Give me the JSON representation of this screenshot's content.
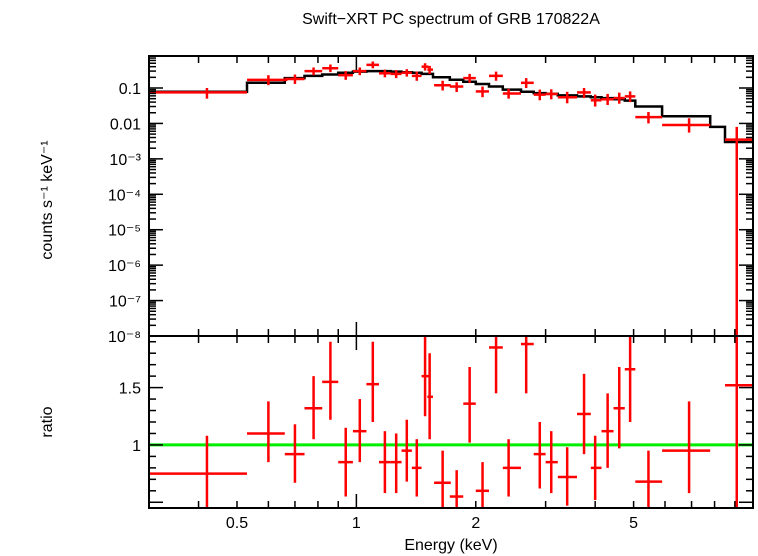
{
  "chart_data": [
    {
      "type": "scatter",
      "panel": "spectrum",
      "title": "Swift−XRT PC spectrum of GRB 170822A",
      "ylabel": "counts s⁻¹ keV⁻¹",
      "xscale": "log",
      "yscale": "log",
      "xlim": [
        0.3,
        10
      ],
      "ylim": [
        1e-08,
        0.8
      ],
      "y_tick_labels": [
        "0.1",
        "0.01",
        "10⁻³",
        "10⁻⁴",
        "10⁻⁵",
        "10⁻⁶",
        "10⁻⁷",
        "10⁻⁸"
      ],
      "y_tick_values": [
        0.1,
        0.01,
        0.001,
        0.0001,
        1e-05,
        1e-06,
        1e-07,
        1e-08
      ],
      "colors": {
        "data": "#ff0000",
        "model": "#000000"
      },
      "data": [
        {
          "x": 0.42,
          "xlo": 0.3,
          "xhi": 0.53,
          "y": 0.075,
          "ylo": 0.05,
          "yhi": 0.1
        },
        {
          "x": 0.6,
          "xlo": 0.53,
          "xhi": 0.67,
          "y": 0.17,
          "ylo": 0.12,
          "yhi": 0.23
        },
        {
          "x": 0.7,
          "xlo": 0.66,
          "xhi": 0.74,
          "y": 0.18,
          "ylo": 0.13,
          "yhi": 0.24
        },
        {
          "x": 0.78,
          "xlo": 0.74,
          "xhi": 0.82,
          "y": 0.3,
          "ylo": 0.23,
          "yhi": 0.38
        },
        {
          "x": 0.86,
          "xlo": 0.82,
          "xhi": 0.9,
          "y": 0.36,
          "ylo": 0.28,
          "yhi": 0.46
        },
        {
          "x": 0.94,
          "xlo": 0.9,
          "xhi": 0.98,
          "y": 0.23,
          "ylo": 0.17,
          "yhi": 0.3
        },
        {
          "x": 1.02,
          "xlo": 0.98,
          "xhi": 1.06,
          "y": 0.3,
          "ylo": 0.23,
          "yhi": 0.38
        },
        {
          "x": 1.1,
          "xlo": 1.06,
          "xhi": 1.14,
          "y": 0.45,
          "ylo": 0.36,
          "yhi": 0.56
        },
        {
          "x": 1.18,
          "xlo": 1.14,
          "xhi": 1.22,
          "y": 0.26,
          "ylo": 0.2,
          "yhi": 0.33
        },
        {
          "x": 1.26,
          "xlo": 1.22,
          "xhi": 1.3,
          "y": 0.25,
          "ylo": 0.19,
          "yhi": 0.32
        },
        {
          "x": 1.34,
          "xlo": 1.3,
          "xhi": 1.38,
          "y": 0.27,
          "ylo": 0.21,
          "yhi": 0.34
        },
        {
          "x": 1.42,
          "xlo": 1.38,
          "xhi": 1.46,
          "y": 0.22,
          "ylo": 0.16,
          "yhi": 0.29
        },
        {
          "x": 1.49,
          "xlo": 1.46,
          "xhi": 1.52,
          "y": 0.4,
          "ylo": 0.31,
          "yhi": 0.5
        },
        {
          "x": 1.53,
          "xlo": 1.51,
          "xhi": 1.56,
          "y": 0.33,
          "ylo": 0.25,
          "yhi": 0.42
        },
        {
          "x": 1.65,
          "xlo": 1.57,
          "xhi": 1.73,
          "y": 0.12,
          "ylo": 0.085,
          "yhi": 0.16
        },
        {
          "x": 1.79,
          "xlo": 1.72,
          "xhi": 1.86,
          "y": 0.11,
          "ylo": 0.077,
          "yhi": 0.145
        },
        {
          "x": 1.93,
          "xlo": 1.86,
          "xhi": 2.0,
          "y": 0.19,
          "ylo": 0.14,
          "yhi": 0.25
        },
        {
          "x": 2.08,
          "xlo": 2.0,
          "xhi": 2.16,
          "y": 0.08,
          "ylo": 0.055,
          "yhi": 0.11
        },
        {
          "x": 2.25,
          "xlo": 2.16,
          "xhi": 2.34,
          "y": 0.22,
          "ylo": 0.16,
          "yhi": 0.29
        },
        {
          "x": 2.42,
          "xlo": 2.34,
          "xhi": 2.6,
          "y": 0.07,
          "ylo": 0.05,
          "yhi": 0.095
        },
        {
          "x": 2.68,
          "xlo": 2.6,
          "xhi": 2.8,
          "y": 0.14,
          "ylo": 0.1,
          "yhi": 0.19
        },
        {
          "x": 2.9,
          "xlo": 2.8,
          "xhi": 3.0,
          "y": 0.065,
          "ylo": 0.045,
          "yhi": 0.09
        },
        {
          "x": 3.1,
          "xlo": 3.0,
          "xhi": 3.22,
          "y": 0.068,
          "ylo": 0.048,
          "yhi": 0.092
        },
        {
          "x": 3.4,
          "xlo": 3.22,
          "xhi": 3.6,
          "y": 0.055,
          "ylo": 0.037,
          "yhi": 0.078
        },
        {
          "x": 3.75,
          "xlo": 3.6,
          "xhi": 3.9,
          "y": 0.075,
          "ylo": 0.052,
          "yhi": 0.1
        },
        {
          "x": 4.0,
          "xlo": 3.9,
          "xhi": 4.15,
          "y": 0.045,
          "ylo": 0.03,
          "yhi": 0.065
        },
        {
          "x": 4.3,
          "xlo": 4.15,
          "xhi": 4.45,
          "y": 0.048,
          "ylo": 0.033,
          "yhi": 0.068
        },
        {
          "x": 4.6,
          "xlo": 4.45,
          "xhi": 4.75,
          "y": 0.052,
          "ylo": 0.036,
          "yhi": 0.074
        },
        {
          "x": 4.9,
          "xlo": 4.75,
          "xhi": 5.05,
          "y": 0.058,
          "ylo": 0.04,
          "yhi": 0.08
        },
        {
          "x": 5.45,
          "xlo": 5.05,
          "xhi": 5.9,
          "y": 0.015,
          "ylo": 0.01,
          "yhi": 0.021
        },
        {
          "x": 6.9,
          "xlo": 5.9,
          "xhi": 7.8,
          "y": 0.009,
          "ylo": 0.0055,
          "yhi": 0.014
        },
        {
          "x": 9.1,
          "xlo": 8.5,
          "xhi": 10.0,
          "y": 0.0035,
          "ylo": 1e-08,
          "yhi": 0.008
        }
      ],
      "model": [
        {
          "xlo": 0.3,
          "xhi": 0.53,
          "y": 0.078
        },
        {
          "xlo": 0.53,
          "xhi": 0.66,
          "y": 0.14
        },
        {
          "xlo": 0.66,
          "xhi": 0.74,
          "y": 0.19
        },
        {
          "xlo": 0.74,
          "xhi": 0.82,
          "y": 0.22
        },
        {
          "xlo": 0.82,
          "xhi": 0.9,
          "y": 0.24
        },
        {
          "xlo": 0.9,
          "xhi": 0.98,
          "y": 0.27
        },
        {
          "xlo": 0.98,
          "xhi": 1.06,
          "y": 0.29
        },
        {
          "xlo": 1.06,
          "xhi": 1.14,
          "y": 0.3
        },
        {
          "xlo": 1.14,
          "xhi": 1.22,
          "y": 0.3
        },
        {
          "xlo": 1.22,
          "xhi": 1.3,
          "y": 0.29
        },
        {
          "xlo": 1.3,
          "xhi": 1.38,
          "y": 0.28
        },
        {
          "xlo": 1.38,
          "xhi": 1.46,
          "y": 0.27
        },
        {
          "xlo": 1.46,
          "xhi": 1.56,
          "y": 0.25
        },
        {
          "xlo": 1.56,
          "xhi": 1.72,
          "y": 0.2
        },
        {
          "xlo": 1.72,
          "xhi": 1.86,
          "y": 0.17
        },
        {
          "xlo": 1.86,
          "xhi": 2.0,
          "y": 0.15
        },
        {
          "xlo": 2.0,
          "xhi": 2.16,
          "y": 0.13
        },
        {
          "xlo": 2.16,
          "xhi": 2.34,
          "y": 0.11
        },
        {
          "xlo": 2.34,
          "xhi": 2.6,
          "y": 0.09
        },
        {
          "xlo": 2.6,
          "xhi": 2.8,
          "y": 0.078
        },
        {
          "xlo": 2.8,
          "xhi": 3.0,
          "y": 0.072
        },
        {
          "xlo": 3.0,
          "xhi": 3.22,
          "y": 0.068
        },
        {
          "xlo": 3.22,
          "xhi": 3.6,
          "y": 0.062
        },
        {
          "xlo": 3.6,
          "xhi": 3.9,
          "y": 0.058
        },
        {
          "xlo": 3.9,
          "xhi": 4.15,
          "y": 0.055
        },
        {
          "xlo": 4.15,
          "xhi": 4.45,
          "y": 0.052
        },
        {
          "xlo": 4.45,
          "xhi": 4.75,
          "y": 0.048
        },
        {
          "xlo": 4.75,
          "xhi": 5.05,
          "y": 0.044
        },
        {
          "xlo": 5.05,
          "xhi": 5.9,
          "y": 0.03
        },
        {
          "xlo": 5.9,
          "xhi": 7.8,
          "y": 0.016
        },
        {
          "xlo": 7.8,
          "xhi": 8.5,
          "y": 0.008
        },
        {
          "xlo": 8.5,
          "xhi": 10.0,
          "y": 0.003
        }
      ]
    },
    {
      "type": "scatter",
      "panel": "ratio",
      "xlabel": "Energy (keV)",
      "ylabel": "ratio",
      "xscale": "log",
      "xlim": [
        0.3,
        10
      ],
      "ylim": [
        0.45,
        1.95
      ],
      "x_tick_labels": [
        "0.5",
        "1",
        "2",
        "5"
      ],
      "x_tick_values": [
        0.5,
        1,
        2,
        5
      ],
      "y_tick_labels": [
        "1",
        "1.5"
      ],
      "y_tick_values": [
        1,
        1.5
      ],
      "reference_line": 1,
      "colors": {
        "data": "#ff0000",
        "reference": "#00ee00"
      },
      "data": [
        {
          "x": 0.42,
          "xlo": 0.3,
          "xhi": 0.53,
          "y": 0.75,
          "ylo": 0.45,
          "yhi": 1.08
        },
        {
          "x": 0.6,
          "xlo": 0.53,
          "xhi": 0.66,
          "y": 1.1,
          "ylo": 0.85,
          "yhi": 1.38
        },
        {
          "x": 0.7,
          "xlo": 0.66,
          "xhi": 0.74,
          "y": 0.92,
          "ylo": 0.67,
          "yhi": 1.18
        },
        {
          "x": 0.78,
          "xlo": 0.74,
          "xhi": 0.82,
          "y": 1.32,
          "ylo": 1.05,
          "yhi": 1.6
        },
        {
          "x": 0.86,
          "xlo": 0.82,
          "xhi": 0.9,
          "y": 1.55,
          "ylo": 1.22,
          "yhi": 1.9
        },
        {
          "x": 0.94,
          "xlo": 0.9,
          "xhi": 0.98,
          "y": 0.85,
          "ylo": 0.55,
          "yhi": 1.15
        },
        {
          "x": 1.02,
          "xlo": 0.98,
          "xhi": 1.06,
          "y": 1.12,
          "ylo": 0.85,
          "yhi": 1.4
        },
        {
          "x": 1.1,
          "xlo": 1.06,
          "xhi": 1.14,
          "y": 1.53,
          "ylo": 1.2,
          "yhi": 1.9
        },
        {
          "x": 1.18,
          "xlo": 1.14,
          "xhi": 1.22,
          "y": 0.85,
          "ylo": 0.58,
          "yhi": 1.12
        },
        {
          "x": 1.26,
          "xlo": 1.22,
          "xhi": 1.3,
          "y": 0.85,
          "ylo": 0.58,
          "yhi": 1.1
        },
        {
          "x": 1.34,
          "xlo": 1.3,
          "xhi": 1.38,
          "y": 0.95,
          "ylo": 0.68,
          "yhi": 1.22
        },
        {
          "x": 1.42,
          "xlo": 1.38,
          "xhi": 1.46,
          "y": 0.8,
          "ylo": 0.55,
          "yhi": 1.05
        },
        {
          "x": 1.49,
          "xlo": 1.46,
          "xhi": 1.52,
          "y": 1.6,
          "ylo": 1.25,
          "yhi": 1.95
        },
        {
          "x": 1.53,
          "xlo": 1.51,
          "xhi": 1.56,
          "y": 1.42,
          "ylo": 1.05,
          "yhi": 1.8
        },
        {
          "x": 1.65,
          "xlo": 1.57,
          "xhi": 1.73,
          "y": 0.67,
          "ylo": 0.45,
          "yhi": 0.95
        },
        {
          "x": 1.79,
          "xlo": 1.72,
          "xhi": 1.86,
          "y": 0.55,
          "ylo": 0.45,
          "yhi": 0.78
        },
        {
          "x": 1.93,
          "xlo": 1.86,
          "xhi": 2.0,
          "y": 1.36,
          "ylo": 1.02,
          "yhi": 1.68
        },
        {
          "x": 2.08,
          "xlo": 2.0,
          "xhi": 2.16,
          "y": 0.6,
          "ylo": 0.45,
          "yhi": 0.85
        },
        {
          "x": 2.25,
          "xlo": 2.16,
          "xhi": 2.34,
          "y": 1.85,
          "ylo": 1.45,
          "yhi": 1.95
        },
        {
          "x": 2.42,
          "xlo": 2.34,
          "xhi": 2.6,
          "y": 0.8,
          "ylo": 0.55,
          "yhi": 1.05
        },
        {
          "x": 2.68,
          "xlo": 2.6,
          "xhi": 2.8,
          "y": 1.88,
          "ylo": 1.45,
          "yhi": 1.95
        },
        {
          "x": 2.9,
          "xlo": 2.8,
          "xhi": 3.0,
          "y": 0.92,
          "ylo": 0.62,
          "yhi": 1.2
        },
        {
          "x": 3.1,
          "xlo": 3.0,
          "xhi": 3.22,
          "y": 0.85,
          "ylo": 0.58,
          "yhi": 1.12
        },
        {
          "x": 3.4,
          "xlo": 3.22,
          "xhi": 3.6,
          "y": 0.72,
          "ylo": 0.47,
          "yhi": 0.98
        },
        {
          "x": 3.75,
          "xlo": 3.6,
          "xhi": 3.9,
          "y": 1.27,
          "ylo": 0.92,
          "yhi": 1.62
        },
        {
          "x": 4.0,
          "xlo": 3.9,
          "xhi": 4.15,
          "y": 0.8,
          "ylo": 0.52,
          "yhi": 1.08
        },
        {
          "x": 4.3,
          "xlo": 4.15,
          "xhi": 4.45,
          "y": 1.12,
          "ylo": 0.8,
          "yhi": 1.45
        },
        {
          "x": 4.6,
          "xlo": 4.45,
          "xhi": 4.75,
          "y": 1.32,
          "ylo": 0.97,
          "yhi": 1.68
        },
        {
          "x": 4.9,
          "xlo": 4.75,
          "xhi": 5.05,
          "y": 1.66,
          "ylo": 1.2,
          "yhi": 1.95
        },
        {
          "x": 5.45,
          "xlo": 5.05,
          "xhi": 5.9,
          "y": 0.68,
          "ylo": 0.45,
          "yhi": 0.95
        },
        {
          "x": 6.9,
          "xlo": 5.9,
          "xhi": 7.8,
          "y": 0.95,
          "ylo": 0.58,
          "yhi": 1.38
        },
        {
          "x": 9.1,
          "xlo": 8.5,
          "xhi": 10.0,
          "y": 1.52,
          "ylo": 0.45,
          "yhi": 1.95
        }
      ]
    }
  ]
}
